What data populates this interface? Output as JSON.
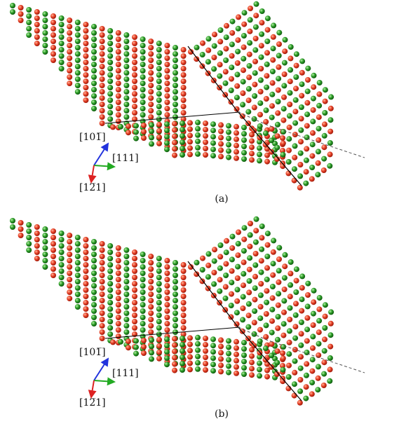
{
  "panels": [
    {
      "label": "(a)",
      "axes": {
        "blue": "[101̅]",
        "green": "[111]",
        "red": "[12̅1]"
      }
    },
    {
      "label": "(b)",
      "axes": {
        "blue": "[101̅]",
        "green": "[111]",
        "red": "[12̅1]"
      }
    }
  ]
}
